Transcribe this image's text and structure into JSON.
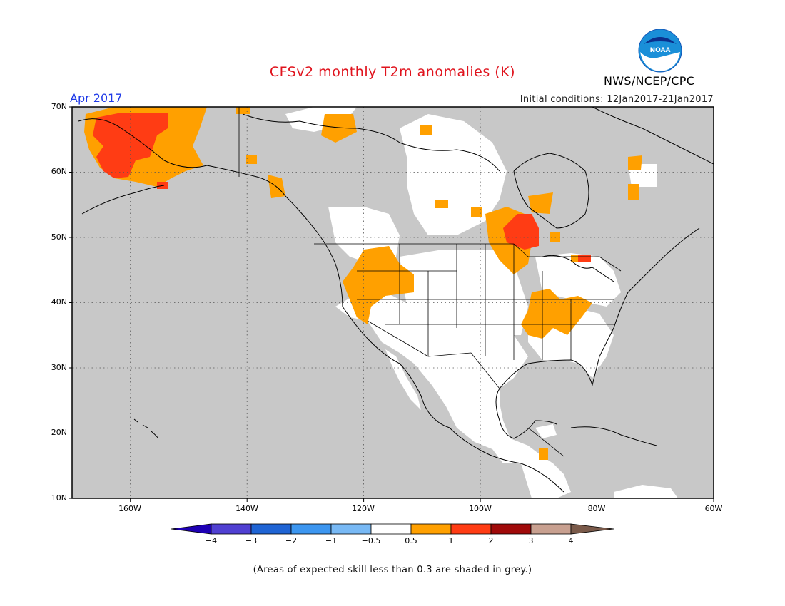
{
  "header": {
    "title": "CFSv2 monthly T2m anomalies (K)",
    "month": "Apr 2017",
    "agency": "NWS/NCEP/CPC",
    "initial_conditions": "Initial conditions: 12Jan2017-21Jan2017",
    "logo_text": "NOAA"
  },
  "map": {
    "lon_range": [
      -170,
      -60
    ],
    "lat_range": [
      10,
      70
    ],
    "lat_labels": [
      "70N",
      "60N",
      "50N",
      "40N",
      "30N",
      "20N",
      "10N"
    ],
    "lon_labels": [
      "160W",
      "140W",
      "120W",
      "100W",
      "80W",
      "60W"
    ],
    "colors": {
      "low_skill_grey": "#c8c8c8",
      "land_white": "#ffffff",
      "anom_0_5_to_1": "#ffa000",
      "anom_1_to_2": "#ff3c14",
      "coast": "#000000",
      "grid_dots": "#555555"
    }
  },
  "colorbar": {
    "labels": [
      "−4",
      "−3",
      "−2",
      "−1",
      "−0.5",
      "0.5",
      "1",
      "2",
      "3",
      "4"
    ],
    "colors": [
      "#1e00b4",
      "#5040d2",
      "#1f64d4",
      "#3c96f0",
      "#78b9f5",
      "#ffffff",
      "#ffa000",
      "#ff3c14",
      "#a00a0a",
      "#c8a090",
      "#7a5a4a"
    ]
  },
  "footer": {
    "note": "(Areas of expected skill less than 0.3 are shaded in grey.)"
  }
}
